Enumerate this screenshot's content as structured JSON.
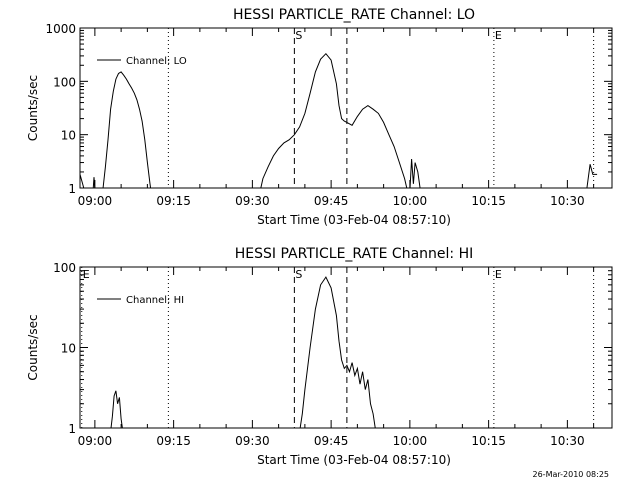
{
  "stamp": "26-Mar-2010 08:25",
  "chart_data": [
    {
      "type": "line",
      "title": "HESSI PARTICLE_RATE Channel: LO",
      "xlabel": "Start Time (03-Feb-04 08:57:10)",
      "ylabel": "Counts/sec",
      "legend": "Channel: LO",
      "legend_position": "top-left",
      "yscale": "log",
      "ylim": [
        1,
        1000
      ],
      "y_ticks": [
        1,
        10,
        100,
        1000
      ],
      "y_tick_labels": [
        "1",
        "10",
        "100",
        "1000"
      ],
      "xlim": [
        "08:57:10",
        "10:38:30"
      ],
      "x_ticks": [
        "09:00",
        "09:15",
        "09:30",
        "09:45",
        "10:00",
        "10:15",
        "10:30"
      ],
      "markers": [
        {
          "time": "09:14",
          "style": "dotted",
          "label": ""
        },
        {
          "time": "09:38",
          "style": "dashed",
          "label": "S"
        },
        {
          "time": "09:48",
          "style": "dashed",
          "label": ""
        },
        {
          "time": "10:16",
          "style": "dotted",
          "label": "E"
        },
        {
          "time": "10:35",
          "style": "dotted",
          "label": ""
        }
      ],
      "series": [
        {
          "name": "Channel: LO",
          "segments": [
            [
              [
                "08:57:10",
                1.8
              ],
              [
                "08:57:40",
                1.2
              ],
              [
                "08:58:00",
                0.9
              ]
            ],
            [
              [
                "08:59:40",
                0.9
              ],
              [
                "08:59:50",
                1.6
              ],
              [
                "09:00:00",
                0.9
              ]
            ],
            [
              [
                "09:01:30",
                0.9
              ],
              [
                "09:02:00",
                2.5
              ],
              [
                "09:02:30",
                8
              ],
              [
                "09:03:00",
                30
              ],
              [
                "09:03:30",
                65
              ],
              [
                "09:04:00",
                110
              ],
              [
                "09:04:30",
                140
              ],
              [
                "09:05:00",
                150
              ],
              [
                "09:05:30",
                130
              ],
              [
                "09:06:00",
                110
              ],
              [
                "09:06:30",
                90
              ],
              [
                "09:07:00",
                75
              ],
              [
                "09:07:30",
                60
              ],
              [
                "09:08:00",
                45
              ],
              [
                "09:08:30",
                30
              ],
              [
                "09:09:00",
                18
              ],
              [
                "09:09:30",
                8
              ],
              [
                "09:10:00",
                3
              ],
              [
                "09:10:30",
                1.2
              ],
              [
                "09:10:40",
                0.9
              ]
            ],
            [
              [
                "09:31:30",
                0.9
              ],
              [
                "09:32:00",
                1.5
              ],
              [
                "09:33:00",
                2.5
              ],
              [
                "09:34:00",
                4
              ],
              [
                "09:35:00",
                5.5
              ],
              [
                "09:36:00",
                7
              ],
              [
                "09:37:00",
                8
              ],
              [
                "09:38:00",
                10
              ],
              [
                "09:39:00",
                14
              ],
              [
                "09:40:00",
                25
              ],
              [
                "09:41:00",
                60
              ],
              [
                "09:42:00",
                150
              ],
              [
                "09:43:00",
                260
              ],
              [
                "09:44:00",
                330
              ],
              [
                "09:45:00",
                250
              ],
              [
                "09:46:00",
                90
              ],
              [
                "09:46:30",
                35
              ],
              [
                "09:47:00",
                20
              ],
              [
                "09:47:30",
                18
              ],
              [
                "09:48:00",
                17
              ],
              [
                "09:49:00",
                15
              ],
              [
                "09:50:00",
                22
              ],
              [
                "09:51:00",
                30
              ],
              [
                "09:52:00",
                35
              ],
              [
                "09:53:00",
                30
              ],
              [
                "09:54:00",
                25
              ],
              [
                "09:55:00",
                17
              ],
              [
                "09:56:00",
                10
              ],
              [
                "09:57:00",
                6
              ],
              [
                "09:58:00",
                3
              ],
              [
                "09:59:00",
                1.5
              ],
              [
                "09:59:30",
                0.9
              ]
            ],
            [
              [
                "10:00:00",
                0.9
              ],
              [
                "10:00:20",
                3.5
              ],
              [
                "10:00:40",
                1.2
              ],
              [
                "10:01:00",
                3
              ],
              [
                "10:01:30",
                2
              ],
              [
                "10:02:00",
                0.9
              ]
            ],
            [
              [
                "10:33:40",
                0.9
              ],
              [
                "10:34:20",
                2.8
              ],
              [
                "10:34:50",
                1.8
              ],
              [
                "10:35:40",
                1.8
              ]
            ]
          ]
        }
      ]
    },
    {
      "type": "line",
      "title": "HESSI PARTICLE_RATE Channel: HI",
      "xlabel": "Start Time (03-Feb-04 08:57:10)",
      "ylabel": "Counts/sec",
      "legend": "Channel: HI",
      "legend_position": "top-left",
      "yscale": "log",
      "ylim": [
        1,
        100
      ],
      "y_ticks": [
        1,
        10,
        100
      ],
      "y_tick_labels": [
        "1",
        "10",
        "100"
      ],
      "xlim": [
        "08:57:10",
        "10:38:30"
      ],
      "x_ticks": [
        "09:00",
        "09:15",
        "09:30",
        "09:45",
        "10:00",
        "10:15",
        "10:30"
      ],
      "markers": [
        {
          "time": "08:57:30",
          "style": "dotted",
          "label": "E"
        },
        {
          "time": "09:14",
          "style": "dotted",
          "label": ""
        },
        {
          "time": "09:38",
          "style": "dashed",
          "label": "S"
        },
        {
          "time": "09:48",
          "style": "dashed",
          "label": ""
        },
        {
          "time": "10:16",
          "style": "dotted",
          "label": "E"
        },
        {
          "time": "10:35",
          "style": "dotted",
          "label": ""
        }
      ],
      "series": [
        {
          "name": "Channel: HI",
          "segments": [
            [
              [
                "09:03:00",
                0.9
              ],
              [
                "09:03:20",
                1.4
              ],
              [
                "09:03:40",
                2.5
              ],
              [
                "09:04:00",
                2.9
              ],
              [
                "09:04:20",
                2.0
              ],
              [
                "09:04:40",
                2.4
              ],
              [
                "09:05:00",
                1.3
              ],
              [
                "09:05:20",
                0.9
              ]
            ],
            [
              [
                "09:39:00",
                0.9
              ],
              [
                "09:39:30",
                1.5
              ],
              [
                "09:40:00",
                3
              ],
              [
                "09:41:00",
                10
              ],
              [
                "09:42:00",
                30
              ],
              [
                "09:43:00",
                60
              ],
              [
                "09:44:00",
                75
              ],
              [
                "09:45:00",
                55
              ],
              [
                "09:46:00",
                25
              ],
              [
                "09:46:30",
                12
              ],
              [
                "09:47:00",
                7
              ],
              [
                "09:47:30",
                5.5
              ],
              [
                "09:48:00",
                6
              ],
              [
                "09:48:30",
                5
              ],
              [
                "09:49:00",
                6.5
              ],
              [
                "09:49:30",
                4.5
              ],
              [
                "09:50:00",
                5.5
              ],
              [
                "09:50:30",
                3.5
              ],
              [
                "09:51:00",
                5
              ],
              [
                "09:51:30",
                3
              ],
              [
                "09:52:00",
                4
              ],
              [
                "09:52:30",
                2
              ],
              [
                "09:53:00",
                1.5
              ],
              [
                "09:53:30",
                0.9
              ]
            ]
          ]
        }
      ]
    }
  ]
}
